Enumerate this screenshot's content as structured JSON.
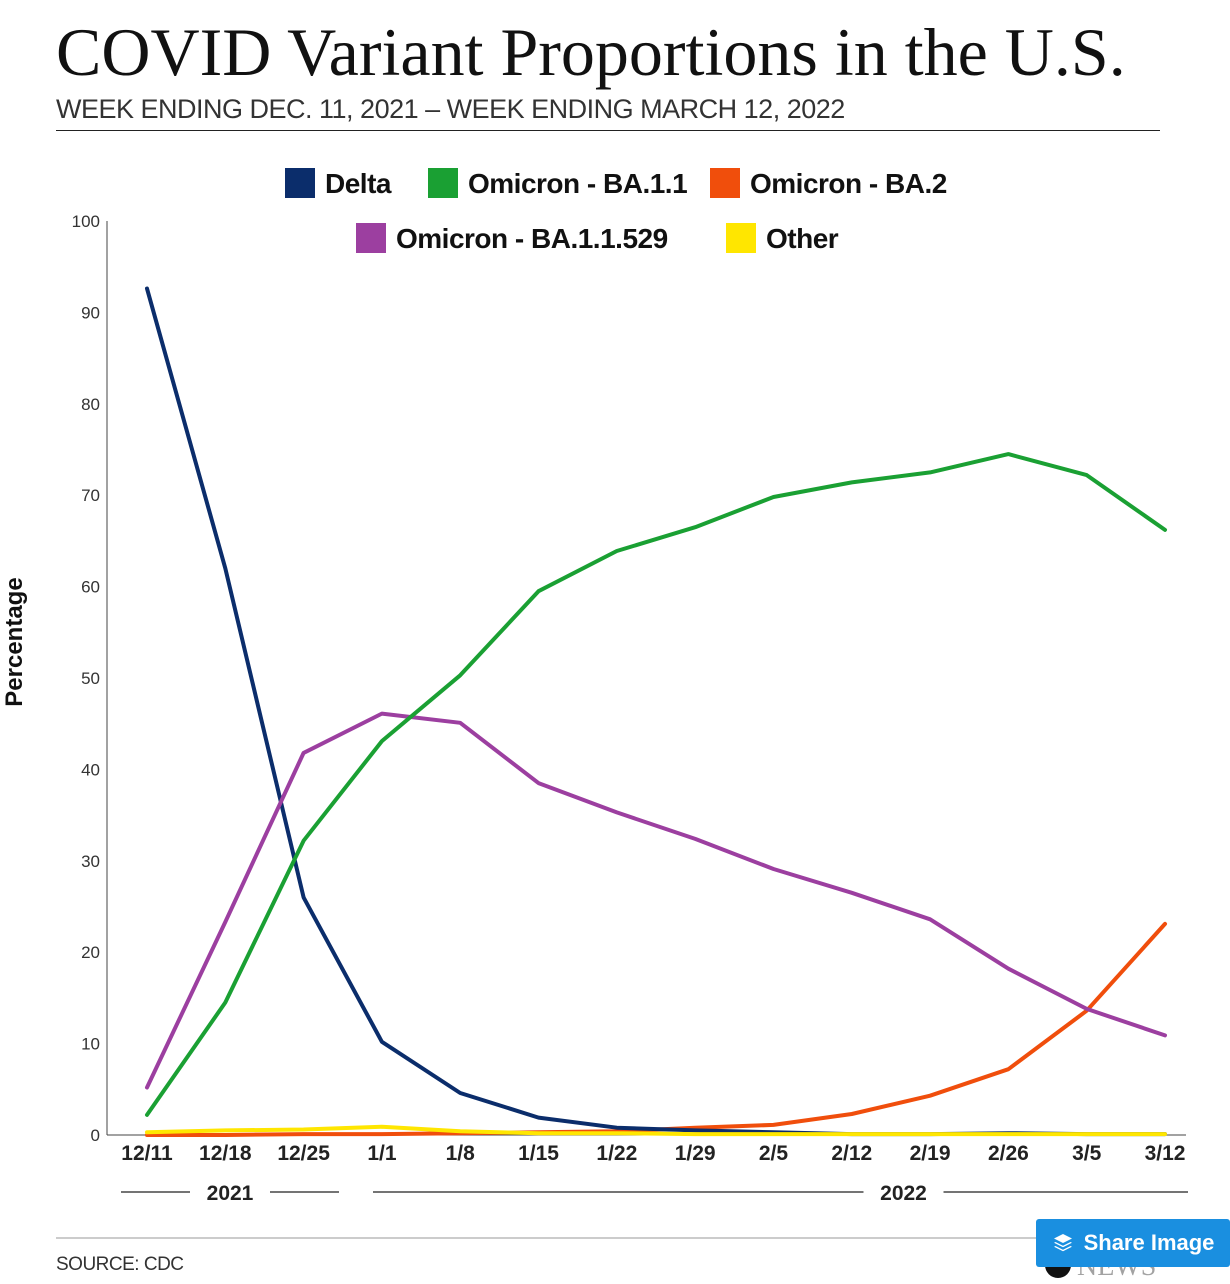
{
  "header": {
    "title": "COVID Variant Proportions in the U.S.",
    "subtitle": "WEEK ENDING DEC. 11, 2021 – WEEK ENDING MARCH 12, 2022"
  },
  "source": "SOURCE: CDC",
  "watermark": "NEWS",
  "share_button": {
    "label": "Share Image",
    "icon": "layers-icon"
  },
  "chart_data": {
    "type": "line",
    "ylabel": "Percentage",
    "xlabel": "",
    "ylim": [
      0,
      100
    ],
    "yticks": [
      0,
      10,
      20,
      30,
      40,
      50,
      60,
      70,
      80,
      90,
      100
    ],
    "grid": false,
    "legend": "top-center",
    "categories": [
      "12/11",
      "12/18",
      "12/25",
      "1/1",
      "1/8",
      "1/15",
      "1/22",
      "1/29",
      "2/5",
      "2/12",
      "2/19",
      "2/26",
      "3/5",
      "3/12"
    ],
    "year_groups": [
      {
        "label": "2021",
        "start": 0,
        "end": 2
      },
      {
        "label": "2022",
        "start": 3,
        "end": 13
      }
    ],
    "series": [
      {
        "name": "Delta",
        "color": "#0b2d6b",
        "values": [
          92.6,
          62,
          26,
          10.2,
          4.6,
          1.9,
          0.8,
          0.5,
          0.3,
          0.1,
          0.1,
          0.2,
          0.1,
          0.1
        ]
      },
      {
        "name": "Omicron - BA.1.1",
        "color": "#1aa033",
        "values": [
          2.2,
          14.5,
          32.2,
          43.1,
          50.3,
          59.5,
          63.9,
          66.5,
          69.8,
          71.4,
          72.5,
          74.5,
          72.2,
          66.2
        ]
      },
      {
        "name": "Omicron - BA.2",
        "color": "#f04e0c",
        "values": [
          0.0,
          0.0,
          0.1,
          0.1,
          0.2,
          0.3,
          0.4,
          0.8,
          1.1,
          2.3,
          4.3,
          7.2,
          13.6,
          23.1
        ]
      },
      {
        "name": "Omicron - BA.1.1.529",
        "color": "#9c3fa0",
        "values": [
          5.2,
          23.3,
          41.8,
          46.1,
          45.1,
          38.5,
          35.3,
          32.4,
          29.1,
          26.5,
          23.6,
          18.2,
          13.8,
          10.9
        ]
      },
      {
        "name": "Other",
        "color": "#ffe600",
        "values": [
          0.3,
          0.5,
          0.6,
          0.9,
          0.4,
          0.2,
          0.2,
          0.1,
          0.1,
          0.1,
          0.1,
          0.1,
          0.1,
          0.1
        ]
      }
    ]
  }
}
